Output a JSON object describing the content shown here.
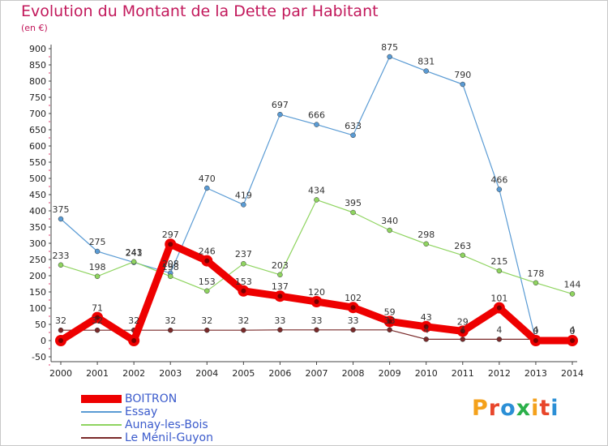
{
  "header": {
    "title": "Evolution du Montant de la Dette par Habitant",
    "subtitle": "(en €)"
  },
  "logo": {
    "letters": [
      "P",
      "r",
      "o",
      "x",
      "i",
      "t",
      "i"
    ],
    "colors": [
      "#f4a11b",
      "#e8462b",
      "#2b8fd6",
      "#2bb04a",
      "#f4a11b",
      "#e8462b",
      "#2b8fd6"
    ]
  },
  "chart_data": {
    "type": "line",
    "x": [
      2000,
      2001,
      2002,
      2003,
      2004,
      2005,
      2006,
      2007,
      2008,
      2009,
      2010,
      2011,
      2012,
      2013,
      2014
    ],
    "ylim": [
      -50,
      900
    ],
    "yticks": [
      -50,
      0,
      50,
      100,
      150,
      200,
      250,
      300,
      350,
      400,
      450,
      500,
      550,
      600,
      650,
      700,
      750,
      800,
      850,
      900
    ],
    "grid": false,
    "legend_position": "bottom-left",
    "series": [
      {
        "name": "BOITRON",
        "color": "#ee0000",
        "emphasis": true,
        "values": [
          0,
          71,
          0,
          297,
          246,
          153,
          137,
          120,
          102,
          59,
          43,
          29,
          101,
          0,
          0
        ],
        "labels": [
          "",
          "71",
          "",
          "297",
          "246",
          "153",
          "137",
          "120",
          "102",
          "59",
          "43",
          "29",
          "101",
          "",
          ""
        ]
      },
      {
        "name": "Essay",
        "color": "#5a9bd4",
        "emphasis": false,
        "values": [
          375,
          275,
          241,
          208,
          470,
          419,
          697,
          666,
          633,
          875,
          831,
          790,
          466,
          0,
          0
        ],
        "labels": [
          "375",
          "275",
          "241",
          "208",
          "470",
          "419",
          "697",
          "666",
          "633",
          "875",
          "831",
          "790",
          "466",
          "0",
          "0"
        ]
      },
      {
        "name": "Aunay-les-Bois",
        "color": "#8fd460",
        "emphasis": false,
        "values": [
          233,
          198,
          243,
          198,
          153,
          237,
          203,
          434,
          395,
          340,
          298,
          263,
          215,
          178,
          144
        ],
        "labels": [
          "233",
          "198",
          "243",
          "198",
          "153",
          "237",
          "203",
          "434",
          "395",
          "340",
          "298",
          "263",
          "215",
          "178",
          "144"
        ]
      },
      {
        "name": "Le Ménil-Guyon",
        "color": "#7a2a2a",
        "emphasis": false,
        "values": [
          32,
          32,
          32,
          32,
          32,
          32,
          33,
          33,
          33,
          33,
          4,
          4,
          4,
          4,
          4
        ],
        "labels": [
          "32",
          "32",
          "32",
          "32",
          "32",
          "32",
          "33",
          "33",
          "33",
          "33",
          "4",
          "4",
          "4",
          "4",
          "4"
        ]
      }
    ]
  }
}
